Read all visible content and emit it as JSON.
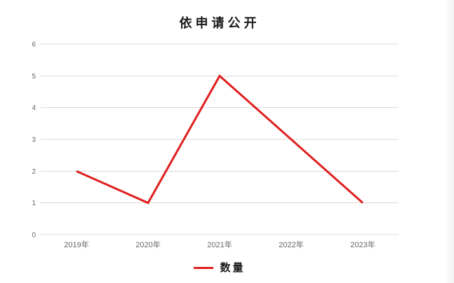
{
  "page": {
    "background": "#ffffff"
  },
  "chart_data": {
    "type": "line",
    "title": "依申请公开",
    "categories": [
      "2019年",
      "2020年",
      "2021年",
      "2022年",
      "2023年"
    ],
    "series": [
      {
        "name": "数量",
        "values": [
          2,
          1,
          5,
          3,
          1
        ],
        "color": "#e01f1f"
      }
    ],
    "ylim": [
      0,
      6
    ],
    "yticks": [
      0,
      1,
      2,
      3,
      4,
      5,
      6
    ],
    "grid": "horizontal-only",
    "legend_position": "bottom-center",
    "colors": {
      "grid_line": "#d9d9d9",
      "tick_label": "#666666",
      "title_text": "#1a1a1a"
    }
  }
}
